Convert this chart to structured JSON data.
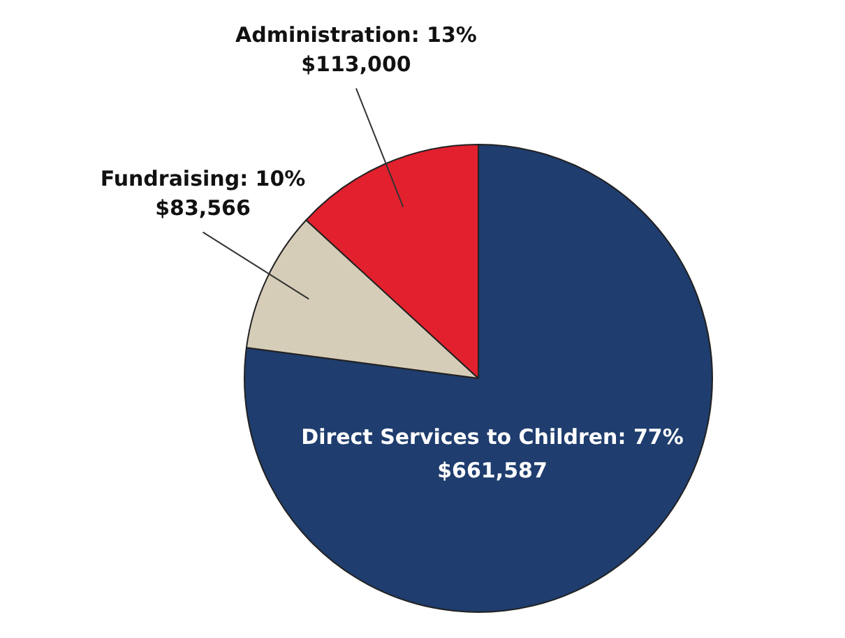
{
  "chart_data": {
    "type": "pie",
    "categories": [
      "Direct Services to Children",
      "Fundraising",
      "Administration"
    ],
    "values": [
      661587,
      83566,
      113000
    ],
    "colors": [
      "#1f3d6e",
      "#d6cdb8",
      "#e3202e"
    ],
    "value_labels": [
      "77%\n$661,587",
      "10%\n$83,566",
      "13%\n$113,000"
    ],
    "legend": false
  }
}
